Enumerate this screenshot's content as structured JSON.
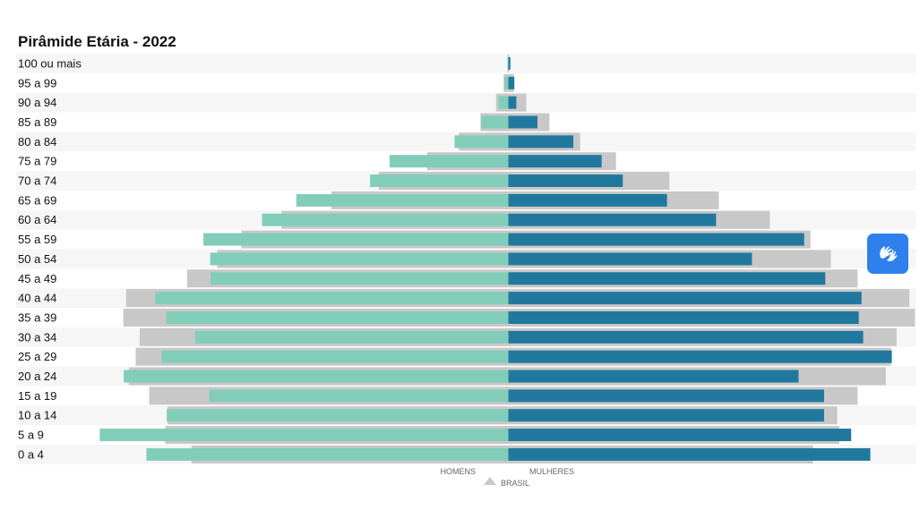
{
  "page": {
    "title": "Pirâmide Etária - 2022"
  },
  "colors": {
    "homens": "#82cdb9",
    "mulheres": "#21789e",
    "brasil": "#c8c8c8",
    "row_band": "#f6f6f6",
    "accessibility_button": "#2f80ed"
  },
  "accessibility_button": {
    "icon": "sign-language-hands-icon"
  },
  "chart_data": {
    "type": "bar",
    "orientation": "horizontal",
    "title": "Pirâmide Etária - 2022",
    "categories": [
      "100 ou mais",
      "95 a 99",
      "90 a 94",
      "85 a 89",
      "80 a 84",
      "75 a 79",
      "70 a 74",
      "65 a 69",
      "60 a 64",
      "55 a 59",
      "50 a 54",
      "45 a 49",
      "40 a 44",
      "35 a 39",
      "30 a 34",
      "25 a 29",
      "20 a 24",
      "15 a 19",
      "10 a 14",
      "5 a 9",
      "0 a 4"
    ],
    "series": [
      {
        "name": "HOMENS",
        "side": "left",
        "values": [
          0.2,
          1.0,
          2.5,
          6.8,
          13.5,
          29.8,
          34.7,
          53.2,
          61.8,
          76.5,
          74.8,
          74.7,
          88.6,
          85.8,
          78.6,
          87.0,
          96.5,
          75.0,
          85.7,
          102.5,
          90.8
        ]
      },
      {
        "name": "MULHERES",
        "side": "right",
        "values": [
          0.5,
          1.5,
          2.0,
          7.3,
          16.3,
          23.4,
          28.7,
          39.8,
          52.1,
          74.2,
          61.1,
          79.5,
          88.6,
          87.9,
          89.0,
          96.2,
          72.8,
          79.2,
          79.2,
          86.0,
          90.8
        ]
      },
      {
        "name": "BRASIL",
        "marker": "triangle",
        "left_values": [
          0.2,
          1.2,
          3.1,
          7.0,
          12.4,
          20.4,
          32.5,
          44.4,
          56.9,
          67.0,
          73.0,
          80.6,
          95.9,
          96.6,
          92.5,
          93.5,
          95.2,
          90.1,
          85.5,
          86.1,
          79.5
        ],
        "right_values": [
          0.2,
          1.4,
          4.5,
          10.3,
          18.0,
          27.0,
          40.4,
          52.8,
          65.6,
          75.8,
          80.9,
          87.6,
          100.6,
          102.0,
          97.4,
          96.0,
          94.7,
          87.6,
          82.5,
          83.0,
          76.4
        ]
      }
    ],
    "xlabel": "",
    "ylabel": "",
    "xlim": [
      -105,
      105
    ],
    "legend": {
      "entries": [
        "HOMENS",
        "MULHERES",
        "BRASIL"
      ],
      "placement": "bottom-center"
    },
    "grid": false
  }
}
